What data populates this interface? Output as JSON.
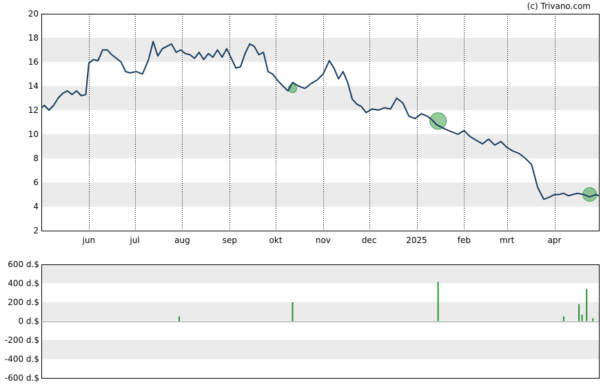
{
  "credit": "(c) Trivano.com",
  "colors": {
    "price_line": "#1a3c5e",
    "band": "#ebebeb",
    "marker_fill": "#3fa04f",
    "volume_bar": "#2e8b3a",
    "axis": "#000000"
  },
  "chart_data": [
    {
      "type": "line",
      "title": "",
      "xlabel": "",
      "ylabel": "",
      "ylim": [
        2,
        20
      ],
      "y_ticks": [
        "2",
        "4",
        "6",
        "8",
        "10",
        "12",
        "14",
        "16",
        "18",
        "20"
      ],
      "x_ticks": [
        "jun",
        "jul",
        "aug",
        "sep",
        "okt",
        "nov",
        "dec",
        "2025",
        "feb",
        "mrt",
        "apr"
      ],
      "x_tick_dates": [
        "2024-06-01",
        "2024-07-01",
        "2024-08-01",
        "2024-09-01",
        "2024-10-01",
        "2024-11-01",
        "2024-12-01",
        "2025-01-01",
        "2025-02-01",
        "2025-03-01",
        "2025-04-01"
      ],
      "x_range": [
        "2024-05-01",
        "2025-04-30"
      ],
      "grid": "vertical dotted lines at month starts, alternating horizontal bands",
      "series": [
        {
          "x": [
            "2024-05-01",
            "2024-05-03",
            "2024-05-06",
            "2024-05-09",
            "2024-05-12",
            "2024-05-15",
            "2024-05-18",
            "2024-05-21",
            "2024-05-24",
            "2024-05-27",
            "2024-05-30",
            "2024-06-01",
            "2024-06-04",
            "2024-06-07",
            "2024-06-10",
            "2024-06-13",
            "2024-06-16",
            "2024-06-19",
            "2024-06-22",
            "2024-06-25",
            "2024-06-28",
            "2024-07-02",
            "2024-07-06",
            "2024-07-10",
            "2024-07-13",
            "2024-07-16",
            "2024-07-19",
            "2024-07-22",
            "2024-07-25",
            "2024-07-28",
            "2024-07-31",
            "2024-08-03",
            "2024-08-06",
            "2024-08-09",
            "2024-08-12",
            "2024-08-15",
            "2024-08-18",
            "2024-08-21",
            "2024-08-24",
            "2024-08-27",
            "2024-08-30",
            "2024-09-02",
            "2024-09-05",
            "2024-09-08",
            "2024-09-11",
            "2024-09-14",
            "2024-09-17",
            "2024-09-20",
            "2024-09-23",
            "2024-09-26",
            "2024-09-29",
            "2024-10-02",
            "2024-10-05",
            "2024-10-09",
            "2024-10-12",
            "2024-10-16",
            "2024-10-20",
            "2024-10-24",
            "2024-10-28",
            "2024-11-01",
            "2024-11-05",
            "2024-11-08",
            "2024-11-11",
            "2024-11-14",
            "2024-11-17",
            "2024-11-20",
            "2024-11-23",
            "2024-11-26",
            "2024-11-29",
            "2024-12-03",
            "2024-12-07",
            "2024-12-11",
            "2024-12-15",
            "2024-12-19",
            "2024-12-23",
            "2024-12-27",
            "2024-12-31",
            "2025-01-04",
            "2025-01-08",
            "2025-01-11",
            "2025-01-14",
            "2025-01-17",
            "2025-01-20",
            "2025-01-24",
            "2025-01-28",
            "2025-02-01",
            "2025-02-05",
            "2025-02-09",
            "2025-02-13",
            "2025-02-17",
            "2025-02-21",
            "2025-02-25",
            "2025-03-01",
            "2025-03-05",
            "2025-03-09",
            "2025-03-13",
            "2025-03-17",
            "2025-03-21",
            "2025-03-25",
            "2025-03-29",
            "2025-04-01",
            "2025-04-04",
            "2025-04-07",
            "2025-04-10",
            "2025-04-13",
            "2025-04-16",
            "2025-04-20",
            "2025-04-24",
            "2025-04-28",
            "2025-04-30"
          ],
          "values": [
            12.2,
            12.4,
            12.0,
            12.4,
            13.0,
            13.4,
            13.6,
            13.3,
            13.6,
            13.2,
            13.3,
            15.9,
            16.2,
            16.1,
            17.0,
            17.0,
            16.6,
            16.3,
            16.0,
            15.2,
            15.1,
            15.2,
            15.0,
            16.2,
            17.7,
            16.5,
            17.1,
            17.3,
            17.5,
            16.8,
            17.0,
            16.7,
            16.6,
            16.3,
            16.8,
            16.2,
            16.7,
            16.4,
            17.0,
            16.4,
            17.1,
            16.3,
            15.5,
            15.6,
            16.7,
            17.5,
            17.3,
            16.6,
            16.8,
            15.2,
            15.0,
            14.5,
            14.1,
            13.6,
            14.3,
            14.0,
            13.8,
            14.2,
            14.5,
            15.0,
            16.1,
            15.5,
            14.6,
            15.2,
            14.3,
            12.9,
            12.5,
            12.3,
            11.8,
            12.1,
            12.0,
            12.2,
            12.1,
            13.0,
            12.6,
            11.5,
            11.3,
            11.7,
            11.5,
            11.2,
            10.8,
            10.6,
            10.4,
            10.2,
            10.0,
            10.3,
            9.8,
            9.5,
            9.2,
            9.6,
            9.1,
            9.4,
            8.9,
            8.6,
            8.4,
            8.0,
            7.5,
            5.6,
            4.6,
            4.8,
            5.0,
            5.0,
            5.1,
            4.9,
            5.0,
            5.1,
            5.0,
            4.8,
            5.0,
            4.9
          ],
          "markers": [
            {
              "x": "2024-10-12",
              "y": 13.8,
              "size": "small"
            },
            {
              "x": "2025-01-15",
              "y": 11.1,
              "size": "large"
            },
            {
              "x": "2025-04-24",
              "y": 5.0,
              "size": "medium"
            }
          ]
        }
      ]
    },
    {
      "type": "bar",
      "title": "",
      "xlabel": "",
      "ylabel": "",
      "ylim": [
        -600,
        600
      ],
      "y_ticks": [
        "600 d.$",
        "400 d.$",
        "200 d.$",
        "0 d.$",
        "-200 d.$",
        "-400 d.$",
        "-600 d.$"
      ],
      "x_range": [
        "2024-05-01",
        "2025-04-30"
      ],
      "series": [
        {
          "x": [
            "2024-07-30",
            "2024-10-12",
            "2025-01-15",
            "2025-04-07",
            "2025-04-17",
            "2025-04-19",
            "2025-04-22",
            "2025-04-26"
          ],
          "values": [
            50,
            200,
            415,
            50,
            180,
            70,
            340,
            30
          ]
        }
      ]
    }
  ]
}
